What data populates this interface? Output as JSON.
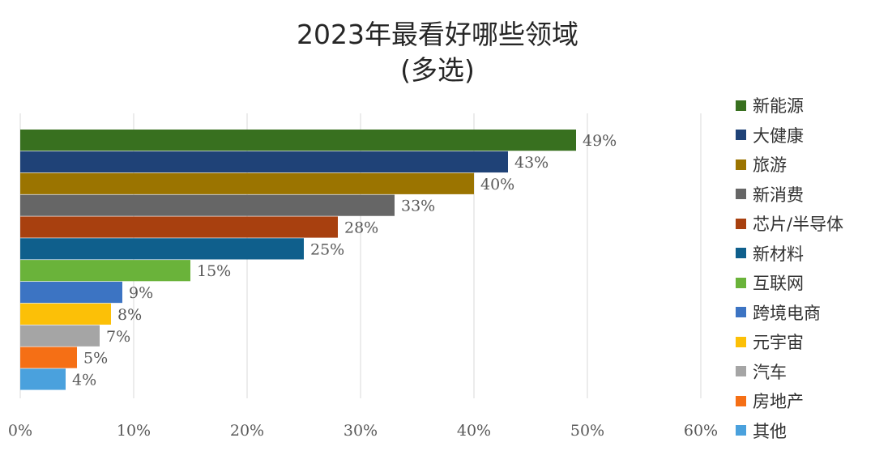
{
  "chart_data": {
    "type": "bar",
    "orientation": "horizontal",
    "title": "2023年最看好哪些领域",
    "subtitle": "(多选)",
    "categories": [
      "新能源",
      "大健康",
      "旅游",
      "新消费",
      "芯片/半导体",
      "新材料",
      "互联网",
      "跨境电商",
      "元宇宙",
      "汽车",
      "房地产",
      "其他"
    ],
    "values": [
      49,
      43,
      40,
      33,
      28,
      25,
      15,
      9,
      8,
      7,
      5,
      4
    ],
    "data_labels": [
      "49%",
      "43%",
      "40%",
      "33%",
      "28%",
      "25%",
      "15%",
      "9%",
      "8%",
      "7%",
      "5%",
      "4%"
    ],
    "colors": [
      "#38701f",
      "#1f4277",
      "#9b7400",
      "#666666",
      "#a8400f",
      "#0f5f8c",
      "#6ab33a",
      "#3c74c3",
      "#fcc007",
      "#a5a5a5",
      "#f56f15",
      "#4aa1dd"
    ],
    "xlim": [
      0,
      60
    ],
    "xticks": [
      "0%",
      "10%",
      "20%",
      "30%",
      "40%",
      "50%",
      "60%"
    ],
    "xtick_values": [
      0,
      10,
      20,
      30,
      40,
      50,
      60
    ],
    "grid": true,
    "legend_position": "right"
  }
}
